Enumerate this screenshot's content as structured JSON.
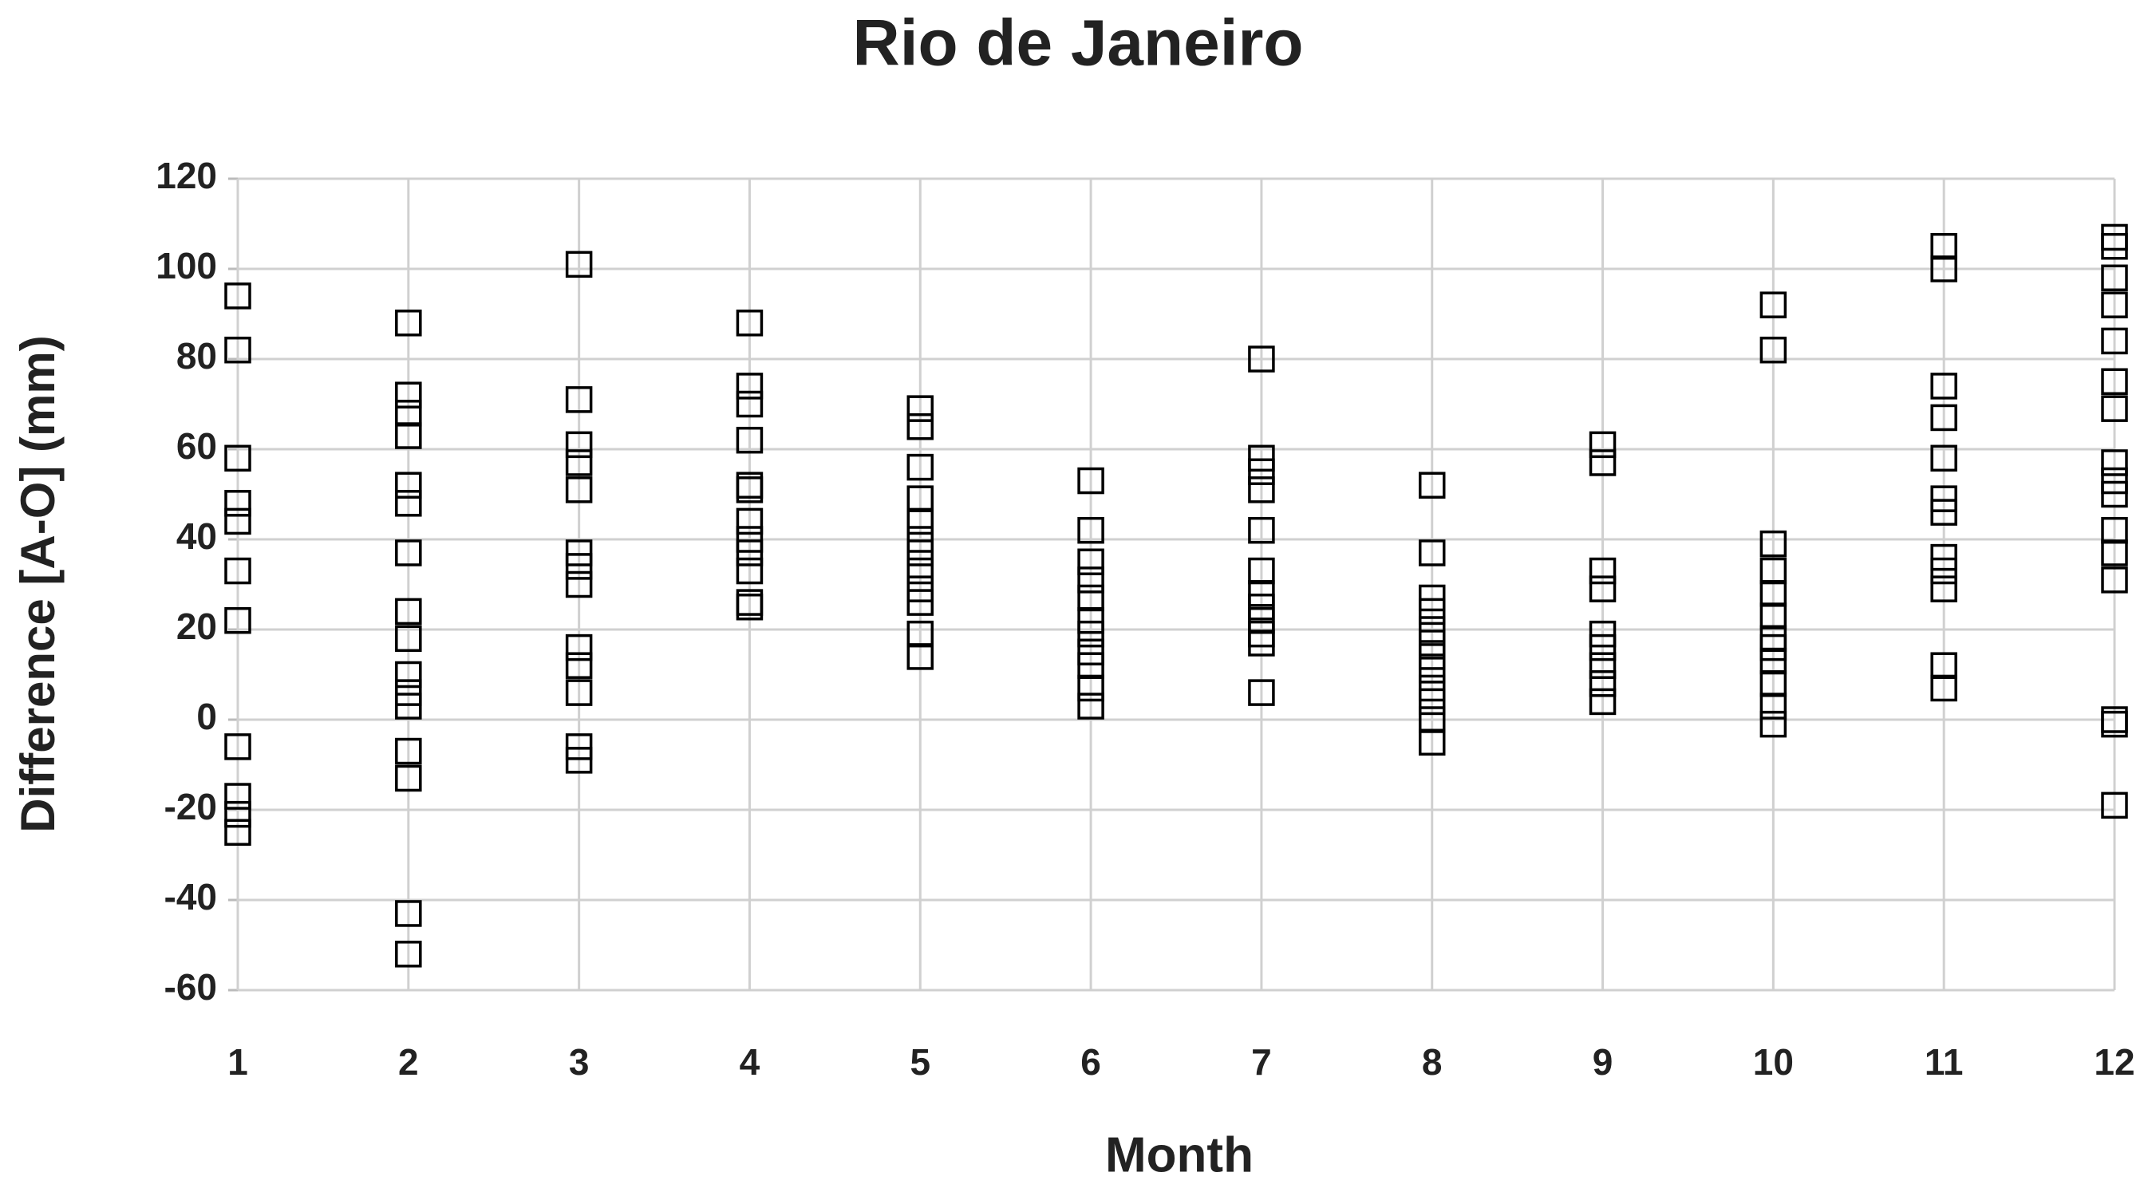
{
  "chart_data": {
    "type": "scatter",
    "title": "Rio de Janeiro",
    "x_label": "Month",
    "y_label": "Difference [A-O] (mm)",
    "x": [
      1,
      1,
      1,
      1,
      1,
      1,
      1,
      1,
      1,
      1,
      1,
      2,
      2,
      2,
      2,
      2,
      2,
      2,
      2,
      2,
      2,
      2,
      2,
      2,
      2,
      2,
      2,
      3,
      3,
      3,
      3,
      3,
      3,
      3,
      3,
      3,
      3,
      3,
      3,
      3,
      4,
      4,
      4,
      4,
      4,
      4,
      4,
      4,
      4,
      4,
      4,
      4,
      5,
      5,
      5,
      5,
      5,
      5,
      5,
      5,
      5,
      5,
      5,
      5,
      6,
      6,
      6,
      6,
      6,
      6,
      6,
      6,
      6,
      6,
      6,
      7,
      7,
      7,
      7,
      7,
      7,
      7,
      7,
      7,
      7,
      7,
      7,
      8,
      8,
      8,
      8,
      8,
      8,
      8,
      8,
      8,
      8,
      8,
      8,
      9,
      9,
      9,
      9,
      9,
      9,
      9,
      9,
      9,
      10,
      10,
      10,
      10,
      10,
      10,
      10,
      10,
      10,
      10,
      10,
      10,
      11,
      11,
      11,
      11,
      11,
      11,
      11,
      11,
      11,
      11,
      11,
      11,
      12,
      12,
      12,
      12,
      12,
      12,
      12,
      12,
      12,
      12,
      12,
      12,
      12,
      12,
      12,
      12
    ],
    "values": [
      94,
      82,
      58,
      48,
      44,
      33,
      22,
      -6,
      -17,
      -21,
      -25,
      88,
      72,
      68,
      63,
      52,
      48,
      37,
      24,
      18,
      10,
      6,
      3,
      -7,
      -13,
      -43,
      -52,
      101,
      71,
      61,
      57,
      51,
      37,
      34,
      30,
      16,
      12,
      6,
      -6,
      -9,
      88,
      74,
      70,
      62,
      52,
      51,
      44,
      40,
      37,
      33,
      26,
      25,
      69,
      65,
      56,
      49,
      44,
      40,
      37,
      33,
      29,
      26,
      19,
      14,
      53,
      42,
      35,
      31,
      27,
      22,
      19,
      15,
      12,
      7,
      3,
      80,
      58,
      55,
      51,
      42,
      33,
      28,
      25,
      22,
      19,
      17,
      6,
      52,
      37,
      27,
      24,
      20,
      17,
      14,
      11,
      7,
      4,
      0,
      -5,
      61,
      57,
      33,
      29,
      19,
      16,
      12,
      8,
      4,
      92,
      82,
      39,
      33,
      28,
      23,
      18,
      16,
      13,
      8,
      3,
      -1,
      105,
      100,
      74,
      67,
      58,
      49,
      46,
      36,
      33,
      29,
      12,
      7,
      107,
      105,
      98,
      92,
      84,
      75,
      69,
      57,
      53,
      50,
      42,
      37,
      31,
      0,
      -1,
      -19
    ],
    "color": "#000000",
    "xlim": [
      1,
      12
    ],
    "xticks": [
      1,
      2,
      3,
      4,
      5,
      6,
      7,
      8,
      9,
      10,
      11,
      12
    ],
    "ylim": [
      -60,
      120
    ],
    "yticks": [
      -60,
      -40,
      -20,
      0,
      20,
      40,
      60,
      80,
      100,
      120
    ],
    "grid": true
  }
}
